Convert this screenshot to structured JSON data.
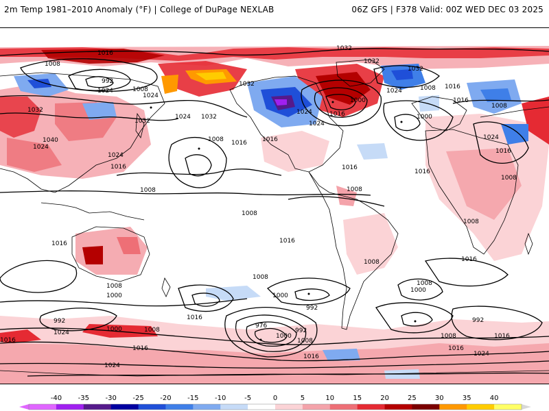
{
  "header": {
    "title_left": "2m Temp 1981–2010 Anomaly (°F) | College of DuPage NEXLAB",
    "title_right": "06Z GFS | F378 Valid: 00Z WED DEC 03 2025"
  },
  "isobar_labels": [
    {
      "text": "1016"
    },
    {
      "text": "1008"
    },
    {
      "text": "992"
    },
    {
      "text": "1024"
    },
    {
      "text": "1008"
    },
    {
      "text": "1032"
    },
    {
      "text": "1032"
    },
    {
      "text": "1032"
    },
    {
      "text": "1024"
    },
    {
      "text": "1024"
    },
    {
      "text": "1032"
    },
    {
      "text": "1040"
    },
    {
      "text": "1024"
    },
    {
      "text": "1024"
    },
    {
      "text": "1016"
    },
    {
      "text": "1024"
    },
    {
      "text": "1032"
    },
    {
      "text": "1008"
    },
    {
      "text": "1016"
    },
    {
      "text": "1016"
    },
    {
      "text": "1032"
    },
    {
      "text": "1024"
    },
    {
      "text": "1016"
    },
    {
      "text": "1000"
    },
    {
      "text": "1032"
    },
    {
      "text": "1024"
    },
    {
      "text": "1008"
    },
    {
      "text": "1016"
    },
    {
      "text": "1016"
    },
    {
      "text": "1008"
    },
    {
      "text": "1000"
    },
    {
      "text": "1024"
    },
    {
      "text": "1016"
    },
    {
      "text": "1016"
    },
    {
      "text": "1016"
    },
    {
      "text": "1008"
    },
    {
      "text": "1008"
    },
    {
      "text": "1008"
    },
    {
      "text": "1008"
    },
    {
      "text": "1016"
    },
    {
      "text": "1016"
    },
    {
      "text": "1008"
    },
    {
      "text": "1016"
    },
    {
      "text": "1008"
    },
    {
      "text": "1008"
    },
    {
      "text": "1000"
    },
    {
      "text": "1016"
    },
    {
      "text": "1008"
    },
    {
      "text": "1000"
    },
    {
      "text": "992"
    },
    {
      "text": "976"
    },
    {
      "text": "1000"
    },
    {
      "text": "992"
    },
    {
      "text": "1008"
    },
    {
      "text": "1008"
    },
    {
      "text": "1000"
    },
    {
      "text": "992"
    },
    {
      "text": "992"
    },
    {
      "text": "1000"
    },
    {
      "text": "1024"
    },
    {
      "text": "1008"
    },
    {
      "text": "1016"
    },
    {
      "text": "1016"
    },
    {
      "text": "1024"
    },
    {
      "text": "1016"
    },
    {
      "text": "1016"
    },
    {
      "text": "1024"
    },
    {
      "text": "1008"
    },
    {
      "text": "1016"
    }
  ],
  "legend": {
    "ticks": [
      "-40",
      "-35",
      "-30",
      "-25",
      "-20",
      "-15",
      "-10",
      "-5",
      "0",
      "5",
      "10",
      "15",
      "20",
      "25",
      "30",
      "35",
      "40"
    ],
    "colors": [
      "#e066ff",
      "#a020f0",
      "#551a8b",
      "#0000a0",
      "#1f4fd8",
      "#3f7fe8",
      "#7faaf0",
      "#c6dbf7",
      "#ffffff",
      "#fbd3d6",
      "#f4a3aa",
      "#ee6f76",
      "#e52a33",
      "#b40000",
      "#7a0000",
      "#ff9900",
      "#ffcc00",
      "#ffff66"
    ]
  }
}
